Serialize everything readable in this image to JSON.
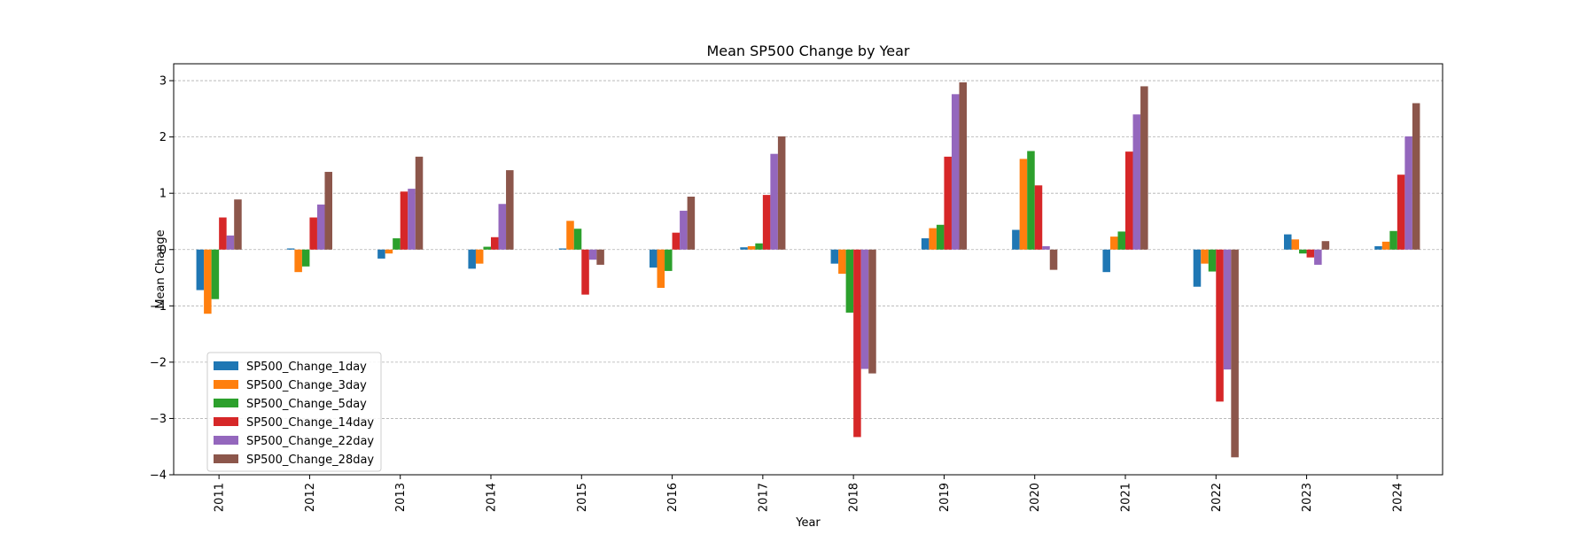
{
  "chart_data": {
    "type": "bar",
    "title": "Mean SP500 Change by Year",
    "xlabel": "Year",
    "ylabel": "Mean Change",
    "ylim": [
      -4,
      3.3
    ],
    "yticks": [
      -4,
      -3,
      -2,
      -1,
      0,
      1,
      2,
      3
    ],
    "ytick_labels": [
      "−4",
      "−3",
      "−2",
      "−1",
      "0",
      "1",
      "2",
      "3"
    ],
    "grid": "horizontal dashed",
    "legend_position": "lower-left",
    "categories": [
      "2011",
      "2012",
      "2013",
      "2014",
      "2015",
      "2016",
      "2017",
      "2018",
      "2019",
      "2020",
      "2021",
      "2022",
      "2023",
      "2024"
    ],
    "series": [
      {
        "name": "SP500_Change_1day",
        "color": "#1f77b4",
        "values": [
          -0.72,
          0.02,
          -0.16,
          -0.34,
          0.02,
          -0.32,
          0.04,
          -0.25,
          0.2,
          0.35,
          -0.4,
          -0.66,
          0.27,
          0.06
        ]
      },
      {
        "name": "SP500_Change_3day",
        "color": "#ff7f0e",
        "values": [
          -1.14,
          -0.4,
          -0.07,
          -0.25,
          0.51,
          -0.68,
          0.06,
          -0.43,
          0.38,
          1.61,
          0.23,
          -0.25,
          0.18,
          0.14
        ]
      },
      {
        "name": "SP500_Change_5day",
        "color": "#2ca02c",
        "values": [
          -0.88,
          -0.3,
          0.2,
          0.05,
          0.37,
          -0.38,
          0.11,
          -1.12,
          0.44,
          1.75,
          0.32,
          -0.39,
          -0.07,
          0.33
        ]
      },
      {
        "name": "SP500_Change_14day",
        "color": "#d62728",
        "values": [
          0.57,
          0.57,
          1.03,
          0.22,
          -0.8,
          0.3,
          0.97,
          -3.33,
          1.65,
          1.14,
          1.74,
          -2.7,
          -0.14,
          1.33
        ]
      },
      {
        "name": "SP500_Change_22day",
        "color": "#9467bd",
        "values": [
          0.25,
          0.8,
          1.08,
          0.81,
          -0.18,
          0.69,
          1.7,
          -2.12,
          2.76,
          0.06,
          2.4,
          -2.13,
          -0.27,
          2.01
        ]
      },
      {
        "name": "SP500_Change_28day",
        "color": "#8c564b",
        "values": [
          0.89,
          1.38,
          1.65,
          1.41,
          -0.27,
          0.94,
          2.01,
          -2.2,
          2.97,
          -0.36,
          2.9,
          -3.69,
          0.15,
          2.6
        ]
      }
    ]
  }
}
